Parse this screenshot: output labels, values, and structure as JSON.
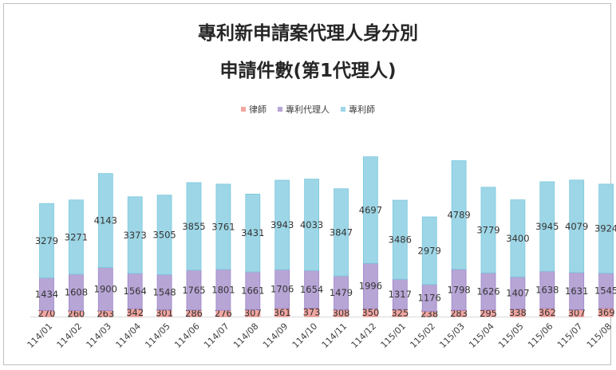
{
  "colors": {
    "lawyer": "#F2A6A1",
    "patent_agent": "#B7A5D6",
    "patent_attorney": "#9DD6E6",
    "lawyer_stroke": "#E98B86",
    "patent_agent_stroke": "#9C86C8",
    "patent_attorney_stroke": "#7CC8DF"
  },
  "chart_data": {
    "type": "bar",
    "stacked": true,
    "title": "專利新申請案代理人身分別",
    "subtitle": "申請件數(第1代理人)",
    "legend_position": "top",
    "grid": false,
    "categories": [
      "114/01",
      "114/02",
      "114/03",
      "114/04",
      "114/05",
      "114/06",
      "114/07",
      "114/08",
      "114/09",
      "114/10",
      "114/11",
      "114/12",
      "115/01",
      "115/02",
      "115/03",
      "115/04",
      "115/05",
      "115/06",
      "115/07",
      "115/08"
    ],
    "series": [
      {
        "name": "律師",
        "values": [
          270,
          260,
          263,
          342,
          301,
          286,
          276,
          307,
          361,
          373,
          308,
          350,
          325,
          238,
          283,
          295,
          338,
          362,
          307,
          369
        ]
      },
      {
        "name": "專利代理人",
        "values": [
          1434,
          1608,
          1900,
          1564,
          1548,
          1765,
          1801,
          1661,
          1706,
          1654,
          1479,
          1996,
          1317,
          1176,
          1798,
          1626,
          1407,
          1638,
          1631,
          1545
        ]
      },
      {
        "name": "專利師",
        "values": [
          3279,
          3271,
          4143,
          3373,
          3505,
          3855,
          3761,
          3431,
          3943,
          4033,
          3847,
          4697,
          3486,
          2979,
          4789,
          3779,
          3400,
          3945,
          4079,
          3924
        ]
      }
    ]
  }
}
